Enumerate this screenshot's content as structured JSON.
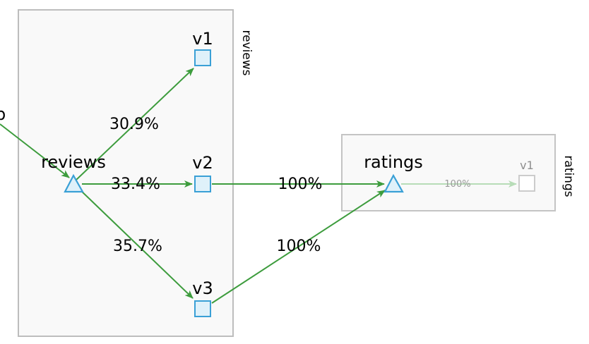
{
  "boxes": {
    "reviews": {
      "label": "reviews"
    },
    "ratings": {
      "label": "ratings"
    }
  },
  "nodes": {
    "reviews_service": {
      "label": "reviews"
    },
    "reviews_v1": {
      "label": "v1"
    },
    "reviews_v2": {
      "label": "v2"
    },
    "reviews_v3": {
      "label": "v3"
    },
    "ratings_service": {
      "label": "ratings"
    },
    "ratings_v1": {
      "label": "v1"
    }
  },
  "edges": {
    "to_v1": {
      "label": "30.9%"
    },
    "to_v2": {
      "label": "33.4%"
    },
    "to_v3": {
      "label": "35.7%"
    },
    "v2_to_ratings": {
      "label": "100%"
    },
    "v3_to_ratings": {
      "label": "100%"
    },
    "ratings_to_v1": {
      "label": "100%"
    }
  },
  "offscreen_label_fragment": "p",
  "colors": {
    "edge": "#3d9c3d",
    "edge_faded": "#b7dcb7",
    "node_stroke": "#3aa0d6",
    "node_fill": "#dff1fa",
    "box_stroke": "#bdbdbd",
    "box_fill": "#f9f9f9"
  }
}
